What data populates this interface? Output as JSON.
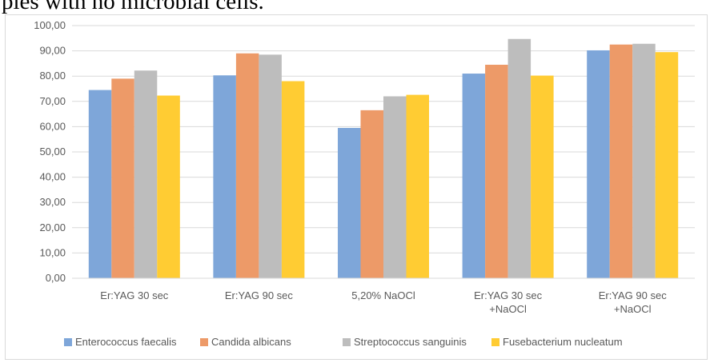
{
  "caption": {
    "text": "ples with no microbial cells."
  },
  "colors": {
    "enterococcus": "#7ea6d9",
    "candida": "#ed9a68",
    "streptococcus": "#bdbdbd",
    "fusebacterium": "#ffcc33",
    "gridline": "#d9d9d9",
    "axis_text": "#595959"
  },
  "chart_data": {
    "type": "bar",
    "title": "",
    "xlabel": "",
    "ylabel": "",
    "ylim": [
      0,
      100
    ],
    "y_ticks": [
      "0,00",
      "10,00",
      "20,00",
      "30,00",
      "40,00",
      "50,00",
      "60,00",
      "70,00",
      "80,00",
      "90,00",
      "100,00"
    ],
    "grid": true,
    "legend_position": "bottom",
    "categories": [
      [
        "Er:YAG  30 sec"
      ],
      [
        "Er:YAG  90 sec"
      ],
      [
        "5,20% NaOCl"
      ],
      [
        "Er:YAG  30 sec",
        "+NaOCl"
      ],
      [
        "Er:YAG  90 sec",
        "+NaOCl"
      ]
    ],
    "series": [
      {
        "name": "Enterococcus faecalis",
        "values": [
          74.5,
          80.3,
          59.5,
          81.0,
          90.2
        ]
      },
      {
        "name": "Candida albicans",
        "values": [
          79.0,
          89.0,
          66.5,
          84.5,
          92.5
        ]
      },
      {
        "name": "Streptococcus sanguinis",
        "values": [
          82.2,
          88.5,
          72.0,
          94.7,
          92.8
        ]
      },
      {
        "name": "Fusebacterium nucleatum",
        "values": [
          72.3,
          78.0,
          72.6,
          80.2,
          89.5
        ]
      }
    ]
  }
}
